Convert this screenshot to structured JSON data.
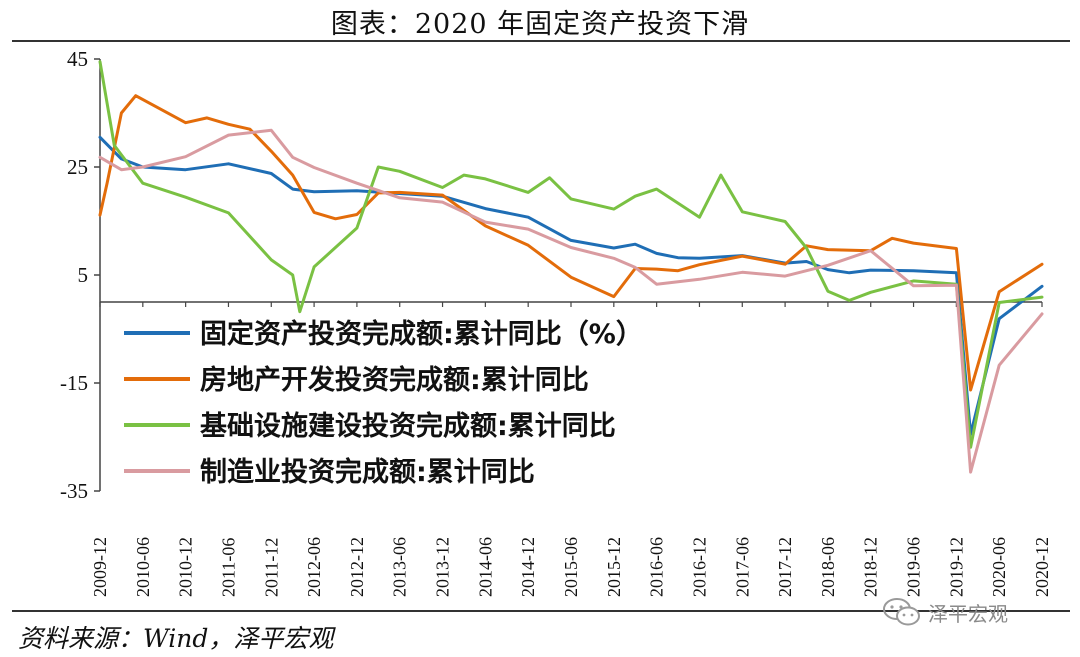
{
  "title": "图表：2020 年固定资产投资下滑",
  "source": "资料来源：Wind，泽平宏观",
  "watermark": "泽平宏观",
  "chart_data": {
    "type": "line",
    "y_ticks": [
      45,
      25,
      5,
      -15,
      -35
    ],
    "ylim": [
      -35,
      45
    ],
    "x_ticks": [
      "2009-12",
      "2010-06",
      "2010-12",
      "2011-06",
      "2011-12",
      "2012-06",
      "2012-12",
      "2013-06",
      "2013-12",
      "2014-06",
      "2014-12",
      "2015-06",
      "2015-12",
      "2016-06",
      "2016-12",
      "2017-06",
      "2017-12",
      "2018-06",
      "2018-12",
      "2019-06",
      "2019-12",
      "2020-06",
      "2020-12"
    ],
    "legend_position": "center-left",
    "series": [
      {
        "name": "固定资产投资完成额:累计同比（%）",
        "color": "#1f6eb5",
        "points": [
          [
            "2009-12",
            30.5
          ],
          [
            "2010-03",
            26.5
          ],
          [
            "2010-06",
            25.0
          ],
          [
            "2010-12",
            24.5
          ],
          [
            "2011-06",
            25.6
          ],
          [
            "2011-12",
            23.8
          ],
          [
            "2012-03",
            20.9
          ],
          [
            "2012-06",
            20.4
          ],
          [
            "2012-12",
            20.6
          ],
          [
            "2013-06",
            20.1
          ],
          [
            "2013-12",
            19.6
          ],
          [
            "2014-06",
            17.3
          ],
          [
            "2014-12",
            15.7
          ],
          [
            "2015-06",
            11.4
          ],
          [
            "2015-12",
            10.0
          ],
          [
            "2016-03",
            10.7
          ],
          [
            "2016-06",
            9.0
          ],
          [
            "2016-09",
            8.2
          ],
          [
            "2016-12",
            8.1
          ],
          [
            "2017-06",
            8.6
          ],
          [
            "2017-12",
            7.2
          ],
          [
            "2018-03",
            7.5
          ],
          [
            "2018-06",
            6.0
          ],
          [
            "2018-09",
            5.4
          ],
          [
            "2018-12",
            5.9
          ],
          [
            "2019-06",
            5.8
          ],
          [
            "2019-12",
            5.4
          ],
          [
            "2020-02",
            -24.5
          ],
          [
            "2020-06",
            -3.1
          ],
          [
            "2020-12",
            2.9
          ]
        ]
      },
      {
        "name": "房地产开发投资完成额:累计同比",
        "color": "#e36c0a",
        "points": [
          [
            "2009-12",
            16.1
          ],
          [
            "2010-01",
            22.0
          ],
          [
            "2010-03",
            35.0
          ],
          [
            "2010-05",
            38.2
          ],
          [
            "2010-12",
            33.2
          ],
          [
            "2011-03",
            34.1
          ],
          [
            "2011-06",
            32.9
          ],
          [
            "2011-09",
            32.0
          ],
          [
            "2011-12",
            27.9
          ],
          [
            "2012-03",
            23.5
          ],
          [
            "2012-06",
            16.6
          ],
          [
            "2012-09",
            15.4
          ],
          [
            "2012-12",
            16.2
          ],
          [
            "2013-03",
            20.2
          ],
          [
            "2013-06",
            20.3
          ],
          [
            "2013-12",
            19.8
          ],
          [
            "2014-06",
            14.1
          ],
          [
            "2014-12",
            10.5
          ],
          [
            "2015-06",
            4.6
          ],
          [
            "2015-12",
            1.0
          ],
          [
            "2016-03",
            6.2
          ],
          [
            "2016-06",
            6.1
          ],
          [
            "2016-09",
            5.8
          ],
          [
            "2016-12",
            6.9
          ],
          [
            "2017-06",
            8.5
          ],
          [
            "2017-12",
            7.0
          ],
          [
            "2018-03",
            10.4
          ],
          [
            "2018-06",
            9.7
          ],
          [
            "2018-12",
            9.5
          ],
          [
            "2019-03",
            11.8
          ],
          [
            "2019-06",
            10.9
          ],
          [
            "2019-12",
            9.9
          ],
          [
            "2020-02",
            -16.3
          ],
          [
            "2020-06",
            1.9
          ],
          [
            "2020-12",
            7.0
          ]
        ]
      },
      {
        "name": "基础设施建设投资完成额:累计同比",
        "color": "#7ac143",
        "points": [
          [
            "2009-12",
            44.5
          ],
          [
            "2010-02",
            29.0
          ],
          [
            "2010-06",
            22.0
          ],
          [
            "2010-12",
            19.4
          ],
          [
            "2011-06",
            16.5
          ],
          [
            "2011-12",
            7.8
          ],
          [
            "2012-03",
            5.0
          ],
          [
            "2012-04",
            -1.8
          ],
          [
            "2012-06",
            6.5
          ],
          [
            "2012-12",
            13.7
          ],
          [
            "2013-03",
            25.0
          ],
          [
            "2013-06",
            24.2
          ],
          [
            "2013-12",
            21.2
          ],
          [
            "2014-03",
            23.5
          ],
          [
            "2014-06",
            22.8
          ],
          [
            "2014-12",
            20.3
          ],
          [
            "2015-03",
            23.0
          ],
          [
            "2015-06",
            19.1
          ],
          [
            "2015-12",
            17.2
          ],
          [
            "2016-03",
            19.6
          ],
          [
            "2016-06",
            20.9
          ],
          [
            "2016-12",
            15.7
          ],
          [
            "2017-03",
            23.5
          ],
          [
            "2017-06",
            16.7
          ],
          [
            "2017-12",
            14.9
          ],
          [
            "2018-03",
            10.0
          ],
          [
            "2018-06",
            2.0
          ],
          [
            "2018-09",
            0.3
          ],
          [
            "2018-12",
            1.8
          ],
          [
            "2019-06",
            3.9
          ],
          [
            "2019-12",
            3.3
          ],
          [
            "2020-02",
            -26.9
          ],
          [
            "2020-06",
            -0.1
          ],
          [
            "2020-12",
            0.9
          ]
        ]
      },
      {
        "name": "制造业投资完成额:累计同比",
        "color": "#d99ba0",
        "points": [
          [
            "2009-12",
            26.8
          ],
          [
            "2010-03",
            24.5
          ],
          [
            "2010-06",
            25.0
          ],
          [
            "2010-12",
            26.9
          ],
          [
            "2011-06",
            30.9
          ],
          [
            "2011-12",
            31.8
          ],
          [
            "2012-03",
            26.8
          ],
          [
            "2012-06",
            24.9
          ],
          [
            "2012-12",
            22.0
          ],
          [
            "2013-06",
            19.3
          ],
          [
            "2013-12",
            18.5
          ],
          [
            "2014-06",
            14.8
          ],
          [
            "2014-12",
            13.5
          ],
          [
            "2015-06",
            10.1
          ],
          [
            "2015-12",
            8.1
          ],
          [
            "2016-03",
            6.4
          ],
          [
            "2016-06",
            3.3
          ],
          [
            "2016-12",
            4.2
          ],
          [
            "2017-06",
            5.5
          ],
          [
            "2017-12",
            4.8
          ],
          [
            "2018-06",
            6.8
          ],
          [
            "2018-12",
            9.5
          ],
          [
            "2019-06",
            3.0
          ],
          [
            "2019-12",
            3.1
          ],
          [
            "2020-02",
            -31.5
          ],
          [
            "2020-06",
            -11.7
          ],
          [
            "2020-12",
            -2.2
          ]
        ]
      }
    ]
  }
}
